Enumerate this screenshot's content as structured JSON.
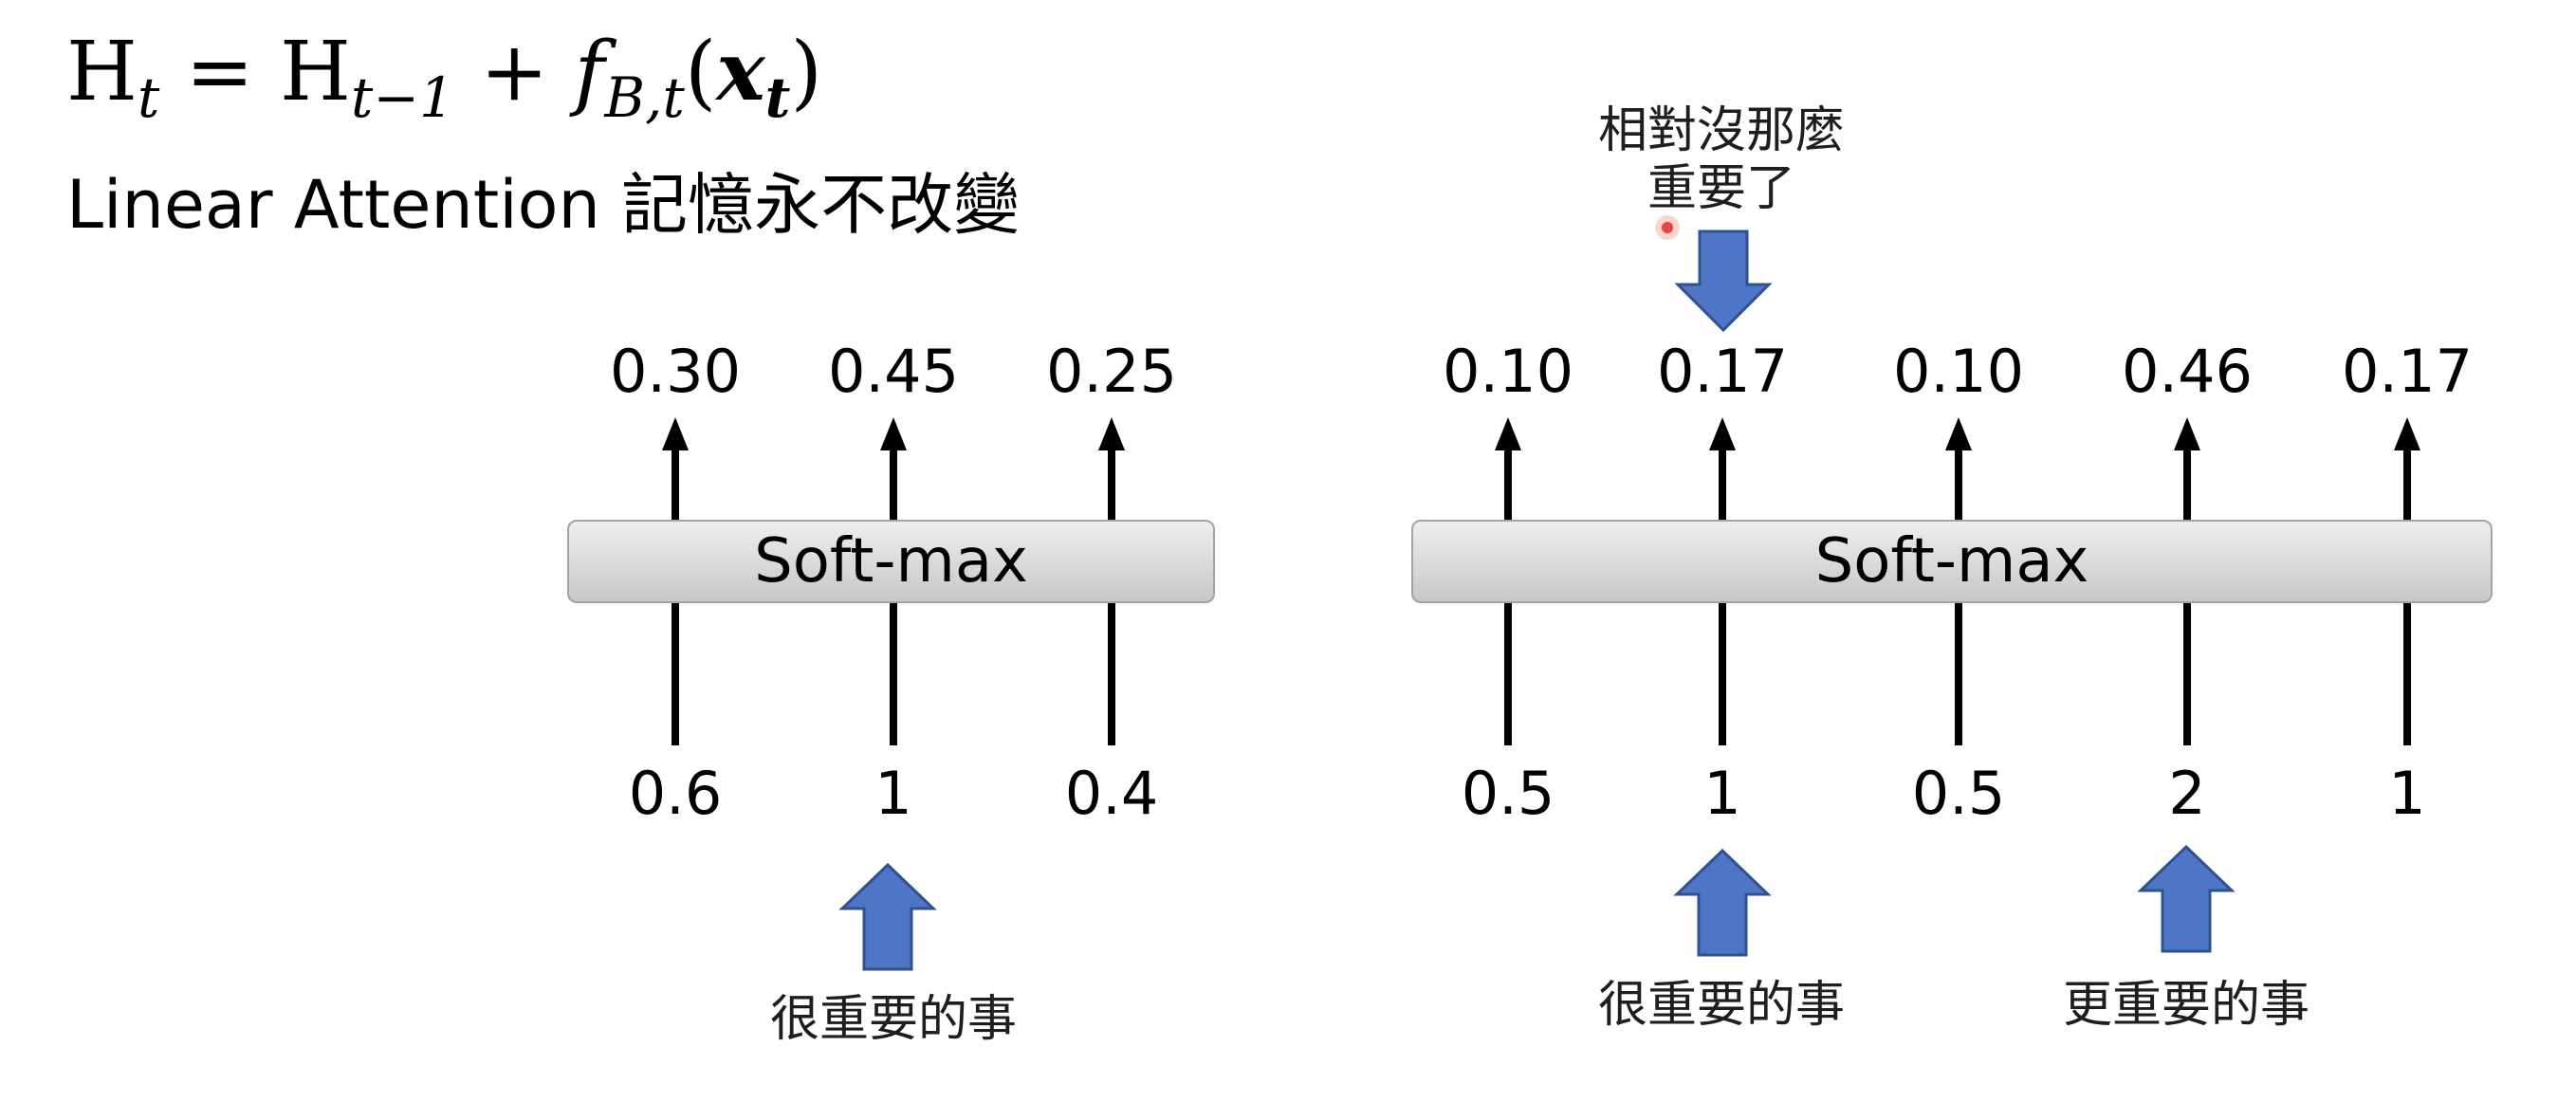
{
  "header": {
    "formula": {
      "h_left": "H",
      "t_left": "t",
      "eq": " = ",
      "h_prev": "H",
      "t_prev": "t−1",
      "plus": " + ",
      "f": "f",
      "f_sub": "B,t",
      "open": "(",
      "x": "x",
      "x_sub": "t",
      "close": ")"
    },
    "subtitle": "Linear Attention 記憶永不改變"
  },
  "left_diagram": {
    "softmax_label": "Soft-max",
    "inputs": [
      "0.6",
      "1",
      "0.4"
    ],
    "outputs": [
      "0.30",
      "0.45",
      "0.25"
    ],
    "annotation": "很重要的事"
  },
  "right_diagram": {
    "softmax_label": "Soft-max",
    "inputs": [
      "0.5",
      "1",
      "0.5",
      "2",
      "1"
    ],
    "outputs": [
      "0.10",
      "0.17",
      "0.10",
      "0.46",
      "0.17"
    ],
    "annotation_top_line1": "相對沒那麼",
    "annotation_top_line2": "重要了",
    "annotation_bottom_1": "很重要的事",
    "annotation_bottom_2": "更重要的事"
  },
  "colors": {
    "arrow_fill": "#4f76c6",
    "arrow_stroke": "#2f528f",
    "cursor_dot": "#e8463f"
  }
}
